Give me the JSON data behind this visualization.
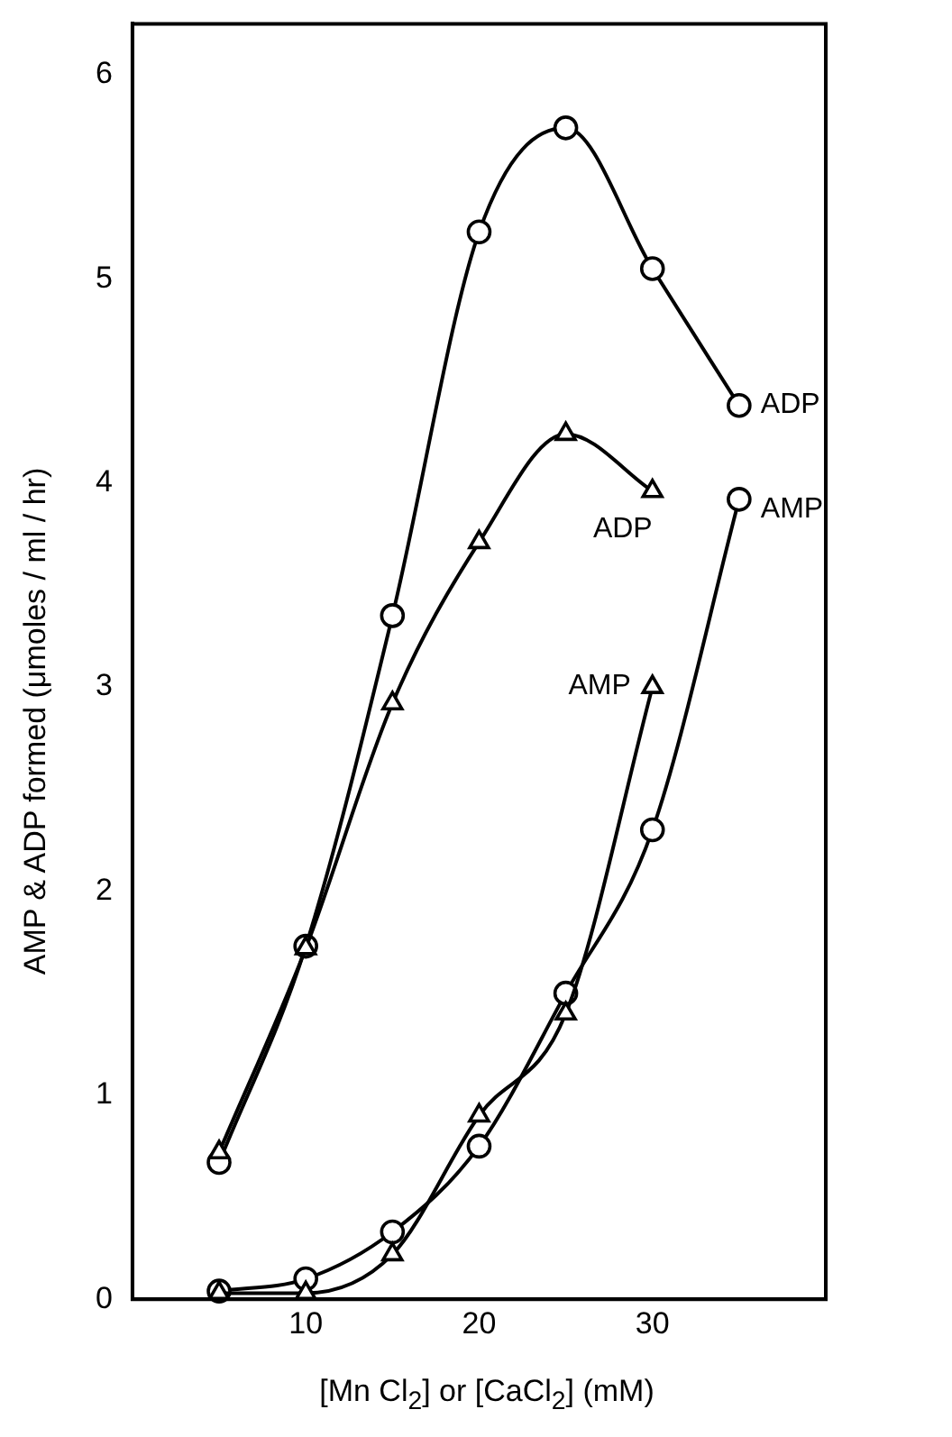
{
  "chart_data": {
    "type": "line",
    "xlabel": "[Mn Cl$_{2}$] or [CaCl$_{2}$] (mM)",
    "ylabel": "AMP & ADP formed (μmoles / ml / hr)",
    "xlim": [
      0,
      40
    ],
    "xticks": [
      10,
      20,
      30
    ],
    "ylim": [
      0,
      6.25
    ],
    "yticks": [
      0,
      1,
      2,
      3,
      4,
      5,
      6
    ],
    "grid": false,
    "legend": false,
    "line_style": "solid",
    "series": [
      {
        "name": "ADP",
        "color": "#000000",
        "marker": "circle",
        "x": [
          5,
          10,
          15,
          20,
          25,
          30,
          35
        ],
        "values": [
          0.67,
          1.73,
          3.35,
          5.23,
          5.74,
          5.05,
          4.38
        ]
      },
      {
        "name": "ADP",
        "color": "#000000",
        "marker": "triangle",
        "x": [
          5,
          10,
          15,
          20,
          25,
          30
        ],
        "values": [
          0.72,
          1.72,
          2.92,
          3.71,
          4.24,
          3.96
        ]
      },
      {
        "name": "AMP",
        "color": "#000000",
        "marker": "triangle",
        "x": [
          5,
          10,
          15,
          20,
          25,
          30
        ],
        "values": [
          0.03,
          0.03,
          0.22,
          0.9,
          1.4,
          3.0
        ]
      },
      {
        "name": "AMP",
        "color": "#000000",
        "marker": "circle",
        "x": [
          5,
          10,
          15,
          20,
          25,
          30,
          35
        ],
        "values": [
          0.04,
          0.1,
          0.33,
          0.75,
          1.5,
          2.3,
          3.92
        ]
      }
    ]
  }
}
